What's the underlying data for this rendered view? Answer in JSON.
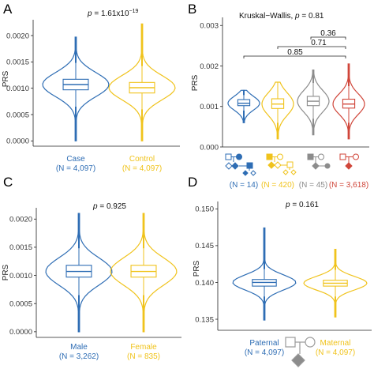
{
  "colors": {
    "blue": "#2E6DB4",
    "yellow": "#F0C31C",
    "gray": "#8C8C8C",
    "red": "#D0463A"
  },
  "panels": {
    "A": {
      "letter": "A",
      "stat_prefix": "p",
      "stat_text": " = 1.61x10",
      "stat_sup": "−19",
      "ylabel": "PRS",
      "ticks": [
        "0.0000",
        "0.0005",
        "0.0010",
        "0.0015",
        "0.0020"
      ],
      "groups": [
        {
          "line1": "Case",
          "line2": "(N = 4,097)"
        },
        {
          "line1": "Control",
          "line2": "(N = 4,097)"
        }
      ]
    },
    "B": {
      "letter": "B",
      "stat_text": "Kruskal−Wallis, ",
      "stat_prefix": "p",
      "stat_value": " = 0.81",
      "ylabel": "PRS",
      "ticks": [
        "0.000",
        "0.001",
        "0.002",
        "0.003"
      ],
      "pairs": [
        "0.36",
        "0.71",
        "0.85"
      ],
      "groups": [
        {
          "label": "(N = 14)"
        },
        {
          "label": "(N = 420)"
        },
        {
          "label": "(N = 45)"
        },
        {
          "label": "(N = 3,618)"
        }
      ]
    },
    "C": {
      "letter": "C",
      "stat_prefix": "p",
      "stat_value": " = 0.925",
      "ylabel": "PRS",
      "ticks": [
        "0.0000",
        "0.0005",
        "0.0010",
        "0.0015",
        "0.0020"
      ],
      "groups": [
        {
          "line1": "Male",
          "line2": "(N = 3,262)"
        },
        {
          "line1": "Female",
          "line2": "(N = 835)"
        }
      ]
    },
    "D": {
      "letter": "D",
      "stat_prefix": "p",
      "stat_value": " = 0.161",
      "ylabel": "PRS",
      "ticks": [
        "0.135",
        "0.140",
        "0.145",
        "0.150"
      ],
      "groups": [
        {
          "line1": "Paternal",
          "line2": "(N = 4,097)"
        },
        {
          "line1": "Maternal",
          "line2": "(N = 4,097)"
        }
      ]
    }
  },
  "chart_data": [
    {
      "panel": "A",
      "type": "violin",
      "ylabel": "PRS",
      "ylim": [
        -0.0001,
        0.0023
      ],
      "categories": [
        "Case",
        "Control"
      ],
      "series": [
        {
          "name": "Case",
          "median": 0.00107,
          "q1": 0.00097,
          "q3": 0.00117,
          "whisker_low": 0.00065,
          "whisker_high": 0.00148,
          "min": 0.0,
          "max": 0.00197
        },
        {
          "name": "Control",
          "median": 0.00101,
          "q1": 0.00091,
          "q3": 0.00111,
          "whisker_low": 0.0006,
          "whisker_high": 0.00142,
          "min": 0.0,
          "max": 0.00222
        }
      ]
    },
    {
      "panel": "B",
      "type": "violin",
      "ylabel": "PRS",
      "ylim": [
        0.0,
        0.0032
      ],
      "categories": [
        "(N = 14)",
        "(N = 420)",
        "(N = 45)",
        "(N = 3,618)"
      ],
      "comparisons": [
        {
          "pair": [
            3,
            4
          ],
          "p": "0.36"
        },
        {
          "pair": [
            2,
            4
          ],
          "p": "0.71"
        },
        {
          "pair": [
            1,
            4
          ],
          "p": "0.85"
        }
      ],
      "series": [
        {
          "name": "(N = 14)",
          "median": 0.00108,
          "q1": 0.00102,
          "q3": 0.00117,
          "whisker_low": 0.0009,
          "whisker_high": 0.00128,
          "min": 0.0006,
          "max": 0.0014
        },
        {
          "name": "(N = 420)",
          "median": 0.00106,
          "q1": 0.00095,
          "q3": 0.00119,
          "whisker_low": 0.0006,
          "whisker_high": 0.0016,
          "min": 0.0002,
          "max": 0.0016
        },
        {
          "name": "(N = 45)",
          "median": 0.00113,
          "q1": 0.00102,
          "q3": 0.00125,
          "whisker_low": 0.0007,
          "whisker_high": 0.00158,
          "min": 0.0003,
          "max": 0.0019
        },
        {
          "name": "(N = 3,618)",
          "median": 0.00106,
          "q1": 0.00096,
          "q3": 0.00118,
          "whisker_low": 0.0006,
          "whisker_high": 0.0015,
          "min": 0.0002,
          "max": 0.00205
        }
      ]
    },
    {
      "panel": "C",
      "type": "violin",
      "ylabel": "PRS",
      "ylim": [
        -0.0001,
        0.0022
      ],
      "categories": [
        "Male",
        "Female"
      ],
      "series": [
        {
          "name": "Male",
          "median": 0.00107,
          "q1": 0.00097,
          "q3": 0.00118,
          "whisker_low": 0.00065,
          "whisker_high": 0.00148,
          "min": 0.0,
          "max": 0.0021
        },
        {
          "name": "Female",
          "median": 0.00107,
          "q1": 0.00097,
          "q3": 0.00118,
          "whisker_low": 0.00065,
          "whisker_high": 0.00148,
          "min": 0.0,
          "max": 0.0021
        }
      ]
    },
    {
      "panel": "D",
      "type": "violin",
      "ylabel": "PRS",
      "ylim": [
        0.1335,
        0.151
      ],
      "categories": [
        "Paternal",
        "Maternal"
      ],
      "series": [
        {
          "name": "Paternal",
          "median": 0.14,
          "q1": 0.1395,
          "q3": 0.1404,
          "whisker_low": 0.1381,
          "whisker_high": 0.1418,
          "min": 0.1349,
          "max": 0.1474
        },
        {
          "name": "Maternal",
          "median": 0.1399,
          "q1": 0.1395,
          "q3": 0.1403,
          "whisker_low": 0.1381,
          "whisker_high": 0.1417,
          "min": 0.1353,
          "max": 0.1445
        }
      ]
    }
  ]
}
